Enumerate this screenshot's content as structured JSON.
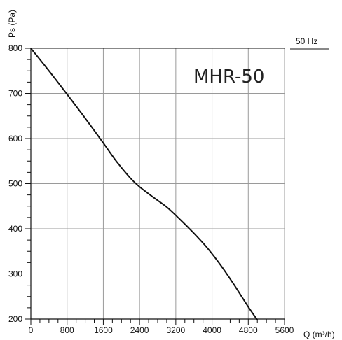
{
  "chart_data": {
    "type": "line",
    "model": "MHR-50",
    "frequency": "50 Hz",
    "xlabel": "Q (m³/h)",
    "ylabel": "Ps (Pa)",
    "xlim": [
      0,
      5600
    ],
    "ylim": [
      200,
      800
    ],
    "x_ticks": [
      0,
      800,
      1600,
      2400,
      3200,
      4000,
      4800,
      5600
    ],
    "x_tick_labels": [
      "0",
      "800",
      "1600",
      "2400",
      "3200",
      "4000",
      "4800",
      "5600"
    ],
    "y_ticks": [
      200,
      300,
      400,
      500,
      600,
      700,
      800
    ],
    "y_tick_labels": [
      "200",
      "300",
      "400",
      "500",
      "600",
      "700",
      "800"
    ],
    "grid": true,
    "series": [
      {
        "color": "#111111",
        "x": [
          0,
          400,
          800,
          1200,
          1600,
          1900,
          2200,
          2400,
          2700,
          3000,
          3300,
          3600,
          3900,
          4200,
          4500,
          4800,
          5000
        ],
        "y": [
          800,
          750,
          698,
          645,
          590,
          548,
          512,
          493,
          470,
          448,
          420,
          390,
          357,
          318,
          274,
          227,
          198
        ]
      }
    ]
  }
}
